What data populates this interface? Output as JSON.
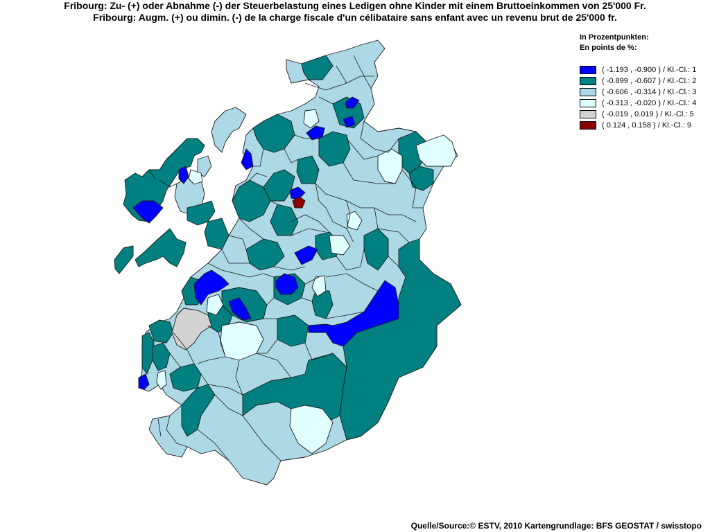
{
  "title": {
    "line1": "Fribourg: Zu- (+) oder Abnahme (-) der Steuerbelastung eines Ledigen ohne Kinder mit einem Bruttoeinkommen von 25'000 Fr.",
    "line2": "Fribourg: Augm. (+) ou dimin. (-) de la charge fiscale d'un célibataire sans enfant avec un revenu brut de 25'000 fr."
  },
  "legend": {
    "heading_de": "In Prozentpunkten:",
    "heading_fr": "En points de %:",
    "classes": [
      {
        "label": "( -1.193 , -0.900 ) / Kl.-Cl.: 1",
        "color": "#0000ff",
        "class": 1
      },
      {
        "label": "( -0.899 , -0.607 ) / Kl.-Cl.: 2",
        "color": "#008080",
        "class": 2
      },
      {
        "label": "( -0.606 , -0.314 ) / Kl.-Cl.: 3",
        "color": "#add8e6",
        "class": 3
      },
      {
        "label": "( -0.313 , -0.020 ) / Kl.-Cl.: 4",
        "color": "#e0ffff",
        "class": 4
      },
      {
        "label": "( -0.019 , 0.019 ) / Kl.-Cl.: 5",
        "color": "#d3d3d3",
        "class": 5
      },
      {
        "label": "( 0.124 , 0.158 ) / Kl.-Cl.: 9",
        "color": "#8b0000",
        "class": 9
      }
    ]
  },
  "source": "Quelle/Source:© ESTV, 2010 Kartengrundlage: BFS GEOSTAT / swisstopo"
}
